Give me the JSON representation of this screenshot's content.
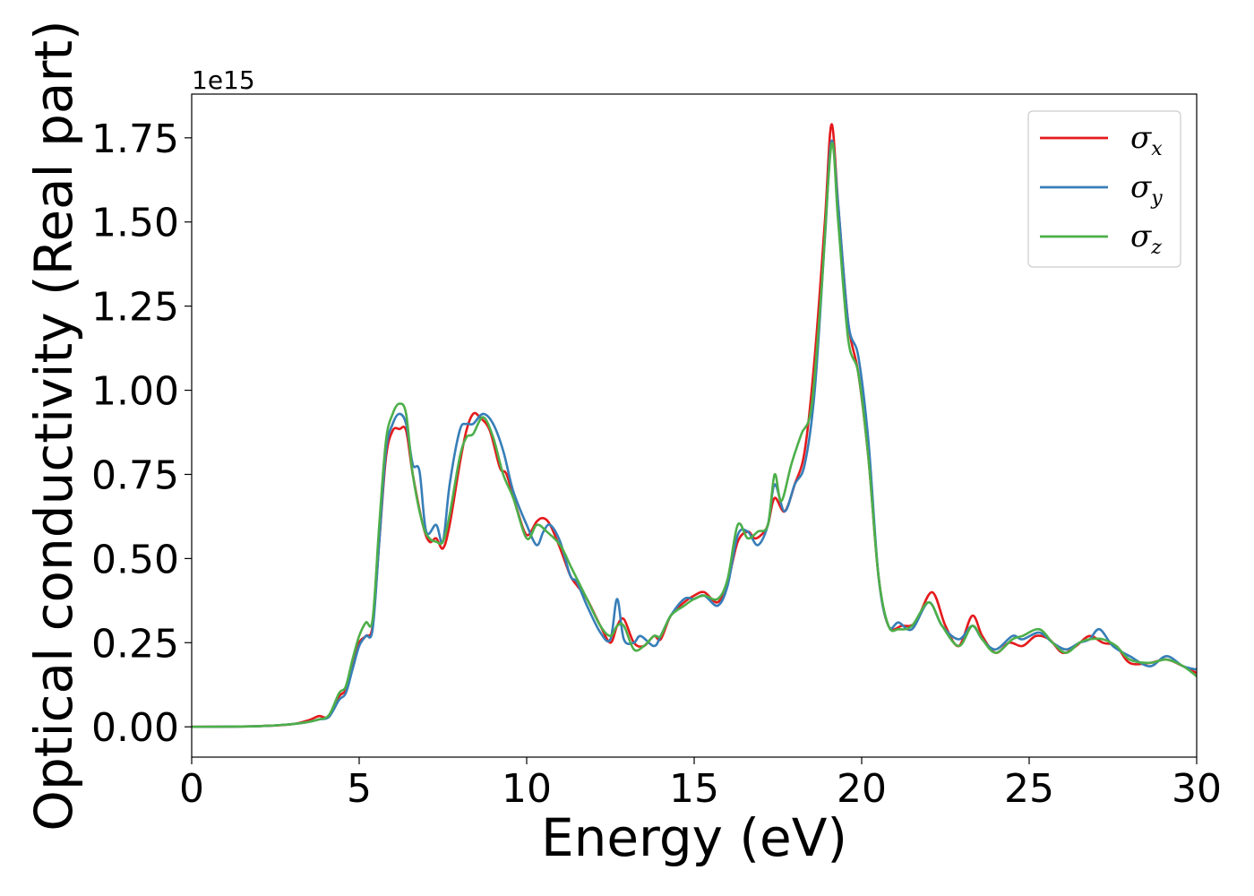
{
  "chart_data": {
    "type": "line",
    "title": "",
    "xlabel": "Energy (eV)",
    "ylabel": "Optical conductivity (Real part)",
    "y_offset_label": "1e15",
    "xlim": [
      0,
      30
    ],
    "ylim": [
      -0.09,
      1.88
    ],
    "xticks": [
      0,
      5,
      10,
      15,
      20,
      25,
      30
    ],
    "xtick_labels": [
      "0",
      "5",
      "10",
      "15",
      "20",
      "25",
      "30"
    ],
    "yticks": [
      0,
      0.25,
      0.5,
      0.75,
      1.0,
      1.25,
      1.5,
      1.75
    ],
    "ytick_labels": [
      "0.00",
      "0.25",
      "0.50",
      "0.75",
      "1.00",
      "1.25",
      "1.50",
      "1.75"
    ],
    "grid": false,
    "legend_position": "top-right",
    "series": [
      {
        "name": "σ",
        "sub": "x",
        "color": "#e41a1c",
        "points": [
          [
            0,
            0
          ],
          [
            2,
            0.002
          ],
          [
            3,
            0.008
          ],
          [
            3.5,
            0.02
          ],
          [
            3.8,
            0.032
          ],
          [
            4.1,
            0.03
          ],
          [
            4.4,
            0.09
          ],
          [
            4.6,
            0.11
          ],
          [
            4.8,
            0.18
          ],
          [
            5.0,
            0.25
          ],
          [
            5.2,
            0.27
          ],
          [
            5.4,
            0.3
          ],
          [
            5.6,
            0.55
          ],
          [
            5.8,
            0.8
          ],
          [
            6.0,
            0.88
          ],
          [
            6.2,
            0.885
          ],
          [
            6.4,
            0.88
          ],
          [
            6.6,
            0.75
          ],
          [
            6.9,
            0.6
          ],
          [
            7.1,
            0.55
          ],
          [
            7.3,
            0.56
          ],
          [
            7.5,
            0.53
          ],
          [
            7.7,
            0.6
          ],
          [
            8.0,
            0.78
          ],
          [
            8.2,
            0.88
          ],
          [
            8.4,
            0.93
          ],
          [
            8.6,
            0.92
          ],
          [
            8.9,
            0.88
          ],
          [
            9.2,
            0.77
          ],
          [
            9.4,
            0.75
          ],
          [
            9.7,
            0.65
          ],
          [
            10.0,
            0.57
          ],
          [
            10.3,
            0.61
          ],
          [
            10.5,
            0.62
          ],
          [
            10.7,
            0.6
          ],
          [
            11.0,
            0.53
          ],
          [
            11.3,
            0.45
          ],
          [
            11.5,
            0.42
          ],
          [
            11.8,
            0.38
          ],
          [
            12.2,
            0.3
          ],
          [
            12.5,
            0.25
          ],
          [
            12.7,
            0.3
          ],
          [
            12.9,
            0.32
          ],
          [
            13.2,
            0.25
          ],
          [
            13.5,
            0.24
          ],
          [
            13.8,
            0.27
          ],
          [
            14.0,
            0.26
          ],
          [
            14.3,
            0.33
          ],
          [
            14.7,
            0.37
          ],
          [
            15.0,
            0.39
          ],
          [
            15.3,
            0.4
          ],
          [
            15.7,
            0.37
          ],
          [
            16.0,
            0.43
          ],
          [
            16.3,
            0.55
          ],
          [
            16.6,
            0.58
          ],
          [
            16.8,
            0.56
          ],
          [
            17.0,
            0.57
          ],
          [
            17.2,
            0.6
          ],
          [
            17.4,
            0.68
          ],
          [
            17.7,
            0.64
          ],
          [
            18.0,
            0.72
          ],
          [
            18.3,
            0.82
          ],
          [
            18.6,
            1.1
          ],
          [
            18.9,
            1.5
          ],
          [
            19.1,
            1.79
          ],
          [
            19.3,
            1.55
          ],
          [
            19.6,
            1.2
          ],
          [
            19.9,
            1.05
          ],
          [
            20.2,
            0.8
          ],
          [
            20.5,
            0.45
          ],
          [
            20.8,
            0.3
          ],
          [
            21.2,
            0.3
          ],
          [
            21.6,
            0.31
          ],
          [
            22.1,
            0.4
          ],
          [
            22.5,
            0.3
          ],
          [
            22.9,
            0.24
          ],
          [
            23.3,
            0.33
          ],
          [
            23.6,
            0.27
          ],
          [
            24.0,
            0.22
          ],
          [
            24.4,
            0.25
          ],
          [
            24.8,
            0.24
          ],
          [
            25.2,
            0.27
          ],
          [
            25.6,
            0.26
          ],
          [
            26.0,
            0.22
          ],
          [
            26.4,
            0.24
          ],
          [
            26.8,
            0.27
          ],
          [
            27.2,
            0.25
          ],
          [
            27.6,
            0.24
          ],
          [
            28.0,
            0.19
          ],
          [
            28.6,
            0.19
          ],
          [
            29.1,
            0.2
          ],
          [
            29.6,
            0.18
          ],
          [
            30.0,
            0.16
          ]
        ]
      },
      {
        "name": "σ",
        "sub": "y",
        "color": "#377eb8",
        "points": [
          [
            0,
            0
          ],
          [
            2,
            0.002
          ],
          [
            3,
            0.008
          ],
          [
            3.5,
            0.015
          ],
          [
            3.8,
            0.022
          ],
          [
            4.1,
            0.03
          ],
          [
            4.4,
            0.08
          ],
          [
            4.6,
            0.1
          ],
          [
            4.8,
            0.17
          ],
          [
            5.0,
            0.24
          ],
          [
            5.2,
            0.27
          ],
          [
            5.4,
            0.29
          ],
          [
            5.6,
            0.55
          ],
          [
            5.8,
            0.82
          ],
          [
            6.0,
            0.9
          ],
          [
            6.2,
            0.93
          ],
          [
            6.4,
            0.9
          ],
          [
            6.6,
            0.78
          ],
          [
            6.8,
            0.76
          ],
          [
            7.0,
            0.58
          ],
          [
            7.3,
            0.6
          ],
          [
            7.5,
            0.55
          ],
          [
            7.7,
            0.72
          ],
          [
            8.0,
            0.88
          ],
          [
            8.2,
            0.9
          ],
          [
            8.4,
            0.9
          ],
          [
            8.7,
            0.93
          ],
          [
            9.0,
            0.9
          ],
          [
            9.3,
            0.82
          ],
          [
            9.6,
            0.7
          ],
          [
            10.0,
            0.6
          ],
          [
            10.3,
            0.54
          ],
          [
            10.5,
            0.58
          ],
          [
            10.7,
            0.6
          ],
          [
            11.0,
            0.55
          ],
          [
            11.3,
            0.45
          ],
          [
            11.5,
            0.43
          ],
          [
            11.8,
            0.36
          ],
          [
            12.2,
            0.28
          ],
          [
            12.5,
            0.26
          ],
          [
            12.7,
            0.38
          ],
          [
            12.9,
            0.26
          ],
          [
            13.2,
            0.25
          ],
          [
            13.4,
            0.27
          ],
          [
            13.8,
            0.24
          ],
          [
            14.0,
            0.27
          ],
          [
            14.3,
            0.33
          ],
          [
            14.7,
            0.38
          ],
          [
            15.0,
            0.38
          ],
          [
            15.3,
            0.39
          ],
          [
            15.7,
            0.36
          ],
          [
            16.0,
            0.42
          ],
          [
            16.3,
            0.57
          ],
          [
            16.6,
            0.58
          ],
          [
            16.9,
            0.54
          ],
          [
            17.2,
            0.6
          ],
          [
            17.4,
            0.72
          ],
          [
            17.7,
            0.64
          ],
          [
            18.0,
            0.72
          ],
          [
            18.3,
            0.78
          ],
          [
            18.6,
            1.0
          ],
          [
            18.9,
            1.45
          ],
          [
            19.1,
            1.74
          ],
          [
            19.3,
            1.55
          ],
          [
            19.6,
            1.2
          ],
          [
            19.9,
            1.1
          ],
          [
            20.2,
            0.85
          ],
          [
            20.5,
            0.45
          ],
          [
            20.8,
            0.3
          ],
          [
            21.1,
            0.31
          ],
          [
            21.5,
            0.29
          ],
          [
            22.0,
            0.37
          ],
          [
            22.4,
            0.3
          ],
          [
            22.9,
            0.26
          ],
          [
            23.3,
            0.3
          ],
          [
            23.6,
            0.26
          ],
          [
            24.0,
            0.23
          ],
          [
            24.5,
            0.27
          ],
          [
            24.8,
            0.26
          ],
          [
            25.3,
            0.28
          ],
          [
            25.7,
            0.25
          ],
          [
            26.1,
            0.23
          ],
          [
            26.5,
            0.25
          ],
          [
            26.8,
            0.26
          ],
          [
            27.1,
            0.29
          ],
          [
            27.5,
            0.24
          ],
          [
            28.0,
            0.21
          ],
          [
            28.6,
            0.18
          ],
          [
            29.1,
            0.21
          ],
          [
            29.6,
            0.18
          ],
          [
            30.0,
            0.17
          ]
        ]
      },
      {
        "name": "σ",
        "sub": "z",
        "color": "#4daf4a",
        "points": [
          [
            0,
            0
          ],
          [
            2,
            0.002
          ],
          [
            3,
            0.008
          ],
          [
            3.5,
            0.015
          ],
          [
            3.8,
            0.022
          ],
          [
            4.1,
            0.035
          ],
          [
            4.4,
            0.1
          ],
          [
            4.6,
            0.12
          ],
          [
            4.8,
            0.2
          ],
          [
            5.0,
            0.27
          ],
          [
            5.2,
            0.31
          ],
          [
            5.4,
            0.32
          ],
          [
            5.6,
            0.6
          ],
          [
            5.8,
            0.85
          ],
          [
            6.0,
            0.93
          ],
          [
            6.2,
            0.96
          ],
          [
            6.4,
            0.93
          ],
          [
            6.6,
            0.75
          ],
          [
            6.9,
            0.6
          ],
          [
            7.1,
            0.56
          ],
          [
            7.3,
            0.55
          ],
          [
            7.5,
            0.55
          ],
          [
            7.7,
            0.63
          ],
          [
            8.0,
            0.8
          ],
          [
            8.2,
            0.86
          ],
          [
            8.4,
            0.87
          ],
          [
            8.7,
            0.92
          ],
          [
            9.0,
            0.86
          ],
          [
            9.3,
            0.75
          ],
          [
            9.6,
            0.68
          ],
          [
            10.0,
            0.56
          ],
          [
            10.3,
            0.6
          ],
          [
            10.6,
            0.58
          ],
          [
            11.0,
            0.54
          ],
          [
            11.3,
            0.48
          ],
          [
            11.5,
            0.44
          ],
          [
            11.8,
            0.38
          ],
          [
            12.2,
            0.3
          ],
          [
            12.5,
            0.27
          ],
          [
            12.7,
            0.3
          ],
          [
            12.9,
            0.3
          ],
          [
            13.2,
            0.23
          ],
          [
            13.5,
            0.24
          ],
          [
            13.8,
            0.27
          ],
          [
            14.0,
            0.27
          ],
          [
            14.3,
            0.33
          ],
          [
            14.7,
            0.36
          ],
          [
            15.0,
            0.38
          ],
          [
            15.3,
            0.39
          ],
          [
            15.7,
            0.38
          ],
          [
            16.0,
            0.44
          ],
          [
            16.3,
            0.6
          ],
          [
            16.6,
            0.56
          ],
          [
            16.9,
            0.58
          ],
          [
            17.2,
            0.6
          ],
          [
            17.4,
            0.75
          ],
          [
            17.6,
            0.67
          ],
          [
            17.9,
            0.78
          ],
          [
            18.2,
            0.87
          ],
          [
            18.5,
            0.95
          ],
          [
            18.8,
            1.3
          ],
          [
            19.1,
            1.73
          ],
          [
            19.3,
            1.5
          ],
          [
            19.6,
            1.15
          ],
          [
            19.9,
            1.05
          ],
          [
            20.2,
            0.8
          ],
          [
            20.5,
            0.45
          ],
          [
            20.8,
            0.3
          ],
          [
            21.1,
            0.29
          ],
          [
            21.5,
            0.3
          ],
          [
            22.0,
            0.37
          ],
          [
            22.4,
            0.3
          ],
          [
            22.9,
            0.24
          ],
          [
            23.3,
            0.3
          ],
          [
            23.6,
            0.26
          ],
          [
            24.0,
            0.22
          ],
          [
            24.5,
            0.26
          ],
          [
            24.8,
            0.27
          ],
          [
            25.3,
            0.29
          ],
          [
            25.7,
            0.25
          ],
          [
            26.1,
            0.22
          ],
          [
            26.5,
            0.25
          ],
          [
            26.8,
            0.26
          ],
          [
            27.2,
            0.26
          ],
          [
            27.6,
            0.24
          ],
          [
            28.0,
            0.2
          ],
          [
            28.6,
            0.19
          ],
          [
            29.1,
            0.2
          ],
          [
            29.6,
            0.18
          ],
          [
            30.0,
            0.15
          ]
        ]
      }
    ]
  }
}
